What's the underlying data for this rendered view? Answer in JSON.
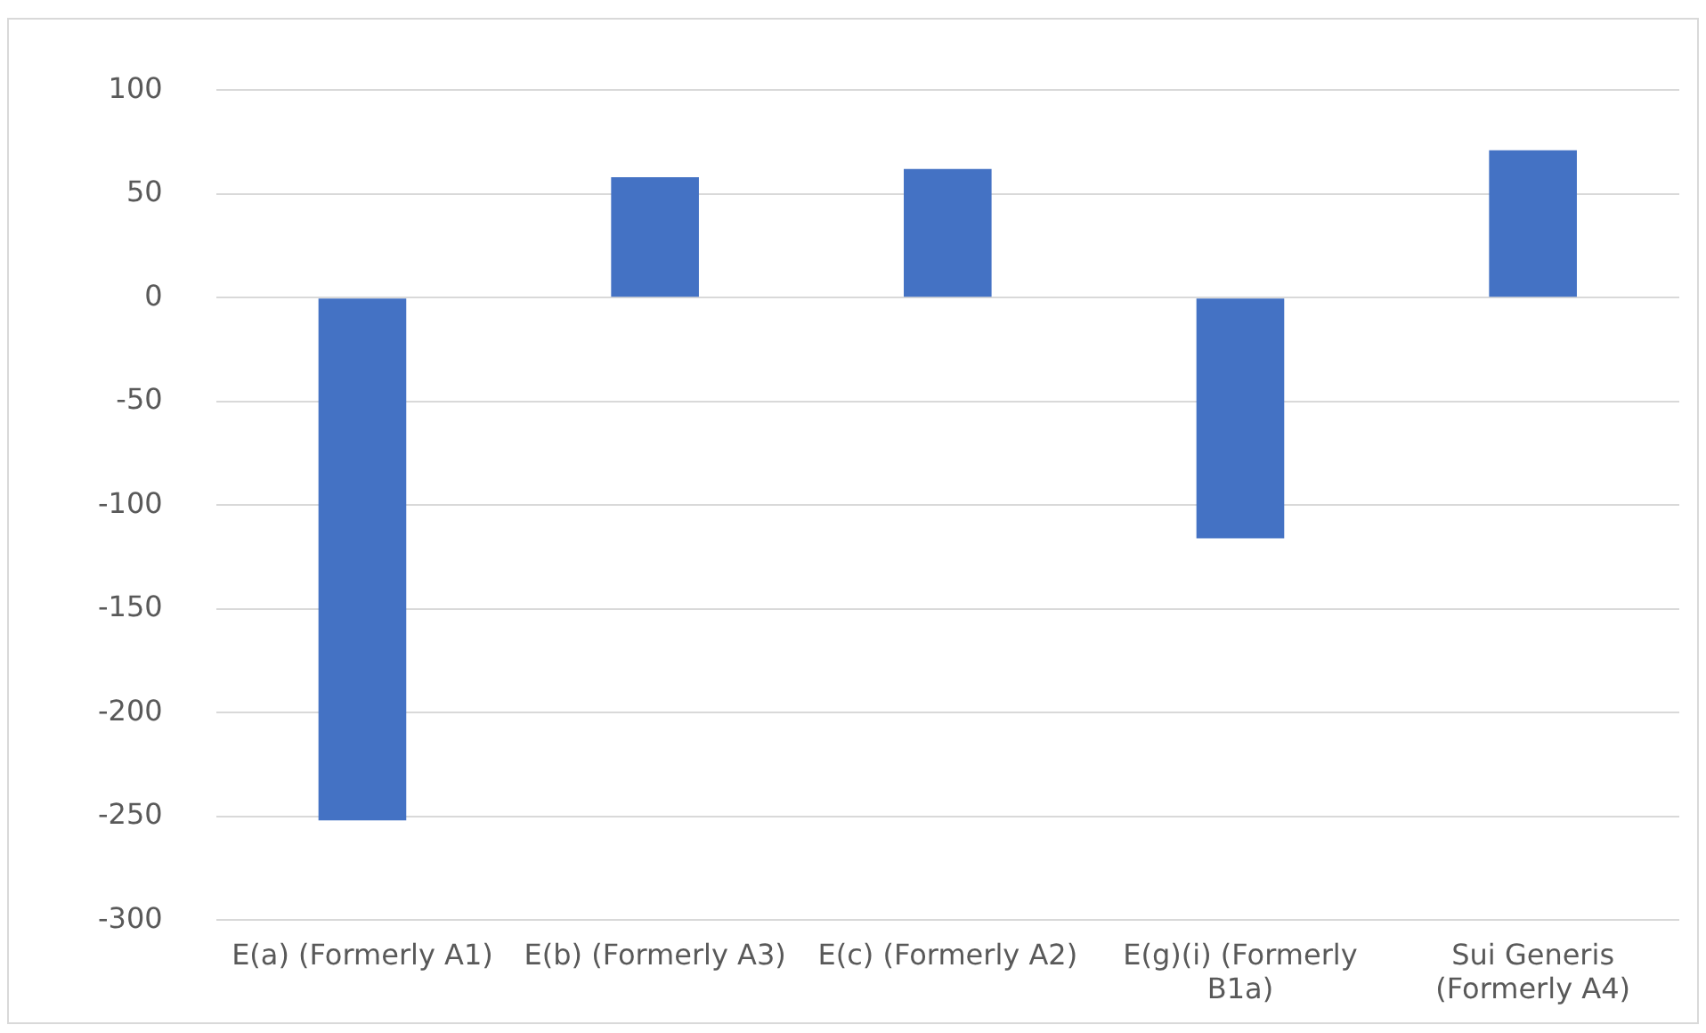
{
  "chart_data": {
    "type": "bar",
    "categories": [
      "E(a) (Formerly A1)",
      "E(b) (Formerly A3)",
      "E(c) (Formerly A2)",
      "E(g)(i) (Formerly B1a)",
      "Sui Generis (Formerly A4)"
    ],
    "values": [
      -252,
      58,
      62,
      -116,
      71
    ],
    "color": "#4472c4",
    "ylim": [
      -300,
      100
    ],
    "yticks": [
      -300,
      -250,
      -200,
      -150,
      -100,
      -50,
      0,
      50,
      100
    ],
    "grid": "y",
    "legend": false
  }
}
